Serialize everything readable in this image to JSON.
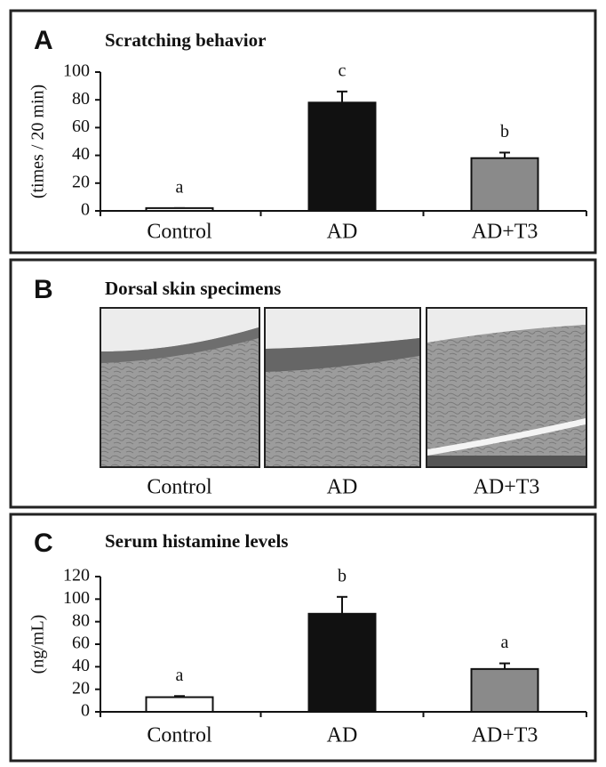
{
  "chart_data": [
    {
      "type": "bar",
      "panel_label": "A",
      "title": "Scratching behavior",
      "ylabel": "(times / 20 min)",
      "categories": [
        "Control",
        "AD",
        "AD+T3"
      ],
      "values": [
        2,
        78,
        38
      ],
      "errors": [
        0,
        8,
        4
      ],
      "annotations": [
        "a",
        "c",
        "b"
      ],
      "colors": [
        "#ffffff",
        "#111111",
        "#8a8a8a"
      ],
      "ylim": [
        0,
        100
      ],
      "yticks": [
        0,
        20,
        40,
        60,
        80,
        100
      ]
    },
    {
      "type": "bar",
      "panel_label": "C",
      "title": "Serum histamine levels",
      "ylabel": "(ng/mL)",
      "categories": [
        "Control",
        "AD",
        "AD+T3"
      ],
      "values": [
        13,
        87,
        38
      ],
      "errors": [
        1,
        15,
        5
      ],
      "annotations": [
        "a",
        "b",
        "a"
      ],
      "colors": [
        "#ffffff",
        "#111111",
        "#8a8a8a"
      ],
      "ylim": [
        0,
        120
      ],
      "yticks": [
        0,
        20,
        40,
        60,
        80,
        100,
        120
      ]
    }
  ],
  "panel_b": {
    "panel_label": "B",
    "title": "Dorsal skin specimens",
    "captions": [
      "Control",
      "AD",
      "AD+T3"
    ]
  }
}
